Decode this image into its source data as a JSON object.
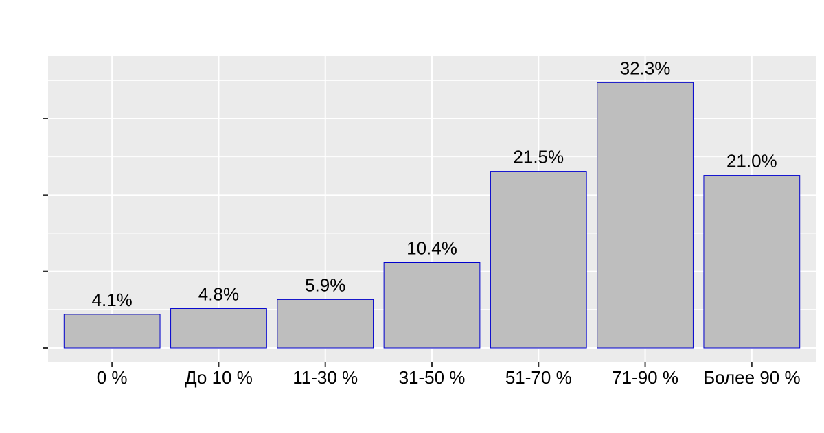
{
  "chart_data": {
    "type": "bar",
    "categories": [
      "0 %",
      "До 10 %",
      "11-30 %",
      "31-50 %",
      "51-70 %",
      "71-90 %",
      "Более 90 %"
    ],
    "values": [
      4.1,
      4.8,
      5.9,
      10.4,
      21.5,
      32.3,
      21.0
    ],
    "value_labels": [
      "4.1%",
      "4.8%",
      "5.9%",
      "10.4%",
      "21.5%",
      "32.3%",
      "21.0%"
    ],
    "color": "#bebebe",
    "edge_color": "#0000cd",
    "ylim": [
      -1.67,
      35.5
    ],
    "yticks": [
      0,
      9.3,
      18.6,
      27.9
    ],
    "grid": true
  }
}
